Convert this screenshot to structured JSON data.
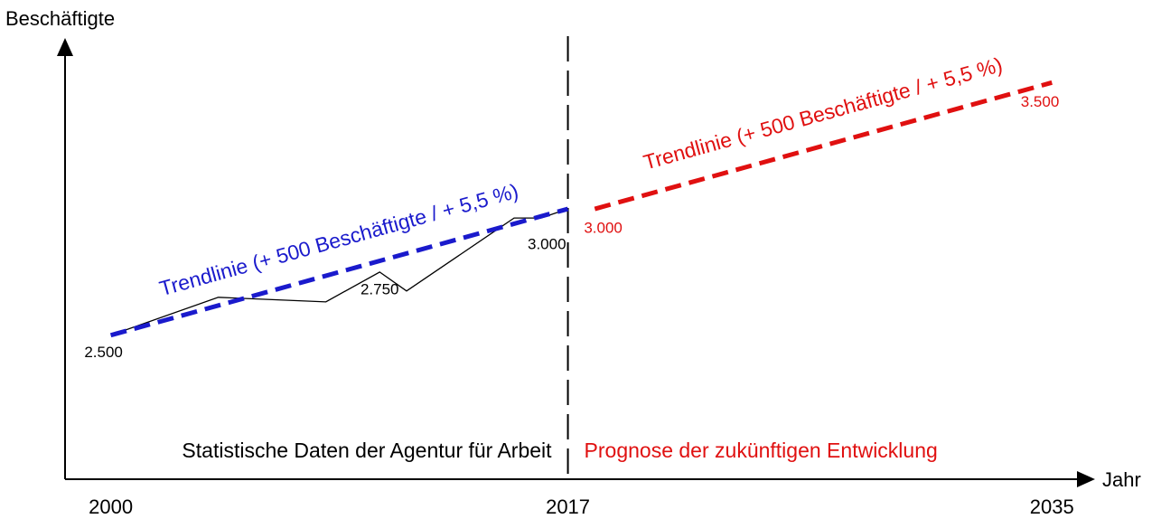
{
  "chart_data": {
    "type": "line",
    "y_label": "Beschäftigte",
    "x_label": "Jahr",
    "xlim": [
      1998.3,
      2036.2
    ],
    "xticks": [
      2000,
      2017,
      2035
    ],
    "ylim": [
      1930,
      3630
    ],
    "divider": 2017,
    "series": [
      {
        "color": "#000000",
        "style": "solid",
        "x": [
          2000,
          2004,
          2008,
          2010,
          2011,
          2015,
          2016,
          2017
        ],
        "values": [
          2500,
          2650,
          2632,
          2750,
          2675,
          2964,
          2964,
          3000
        ],
        "value_labels": [
          "2.500",
          null,
          null,
          "2.750",
          null,
          null,
          null,
          "3.000"
        ]
      },
      {
        "name": "Trendlinie (+ 500 Beschäftigte / + 5,5 %)",
        "color": "#1a1acc",
        "style": "dashed",
        "x": [
          2000,
          2017
        ],
        "values": [
          2500,
          3000
        ]
      },
      {
        "name": "Trendlinie (+ 500 Beschäftigte / + 5,5 %)",
        "color": "#e01010",
        "style": "dashed",
        "x": [
          2018,
          2035
        ],
        "values": [
          3000,
          3500
        ],
        "value_labels": [
          "3.000",
          "3.500"
        ]
      }
    ],
    "regions": [
      {
        "label": "Statistische Daten der Agentur für Arbeit",
        "color": "#000000"
      },
      {
        "label": "Prognose der zukünftigen Entwicklung",
        "color": "#e01010"
      }
    ]
  }
}
